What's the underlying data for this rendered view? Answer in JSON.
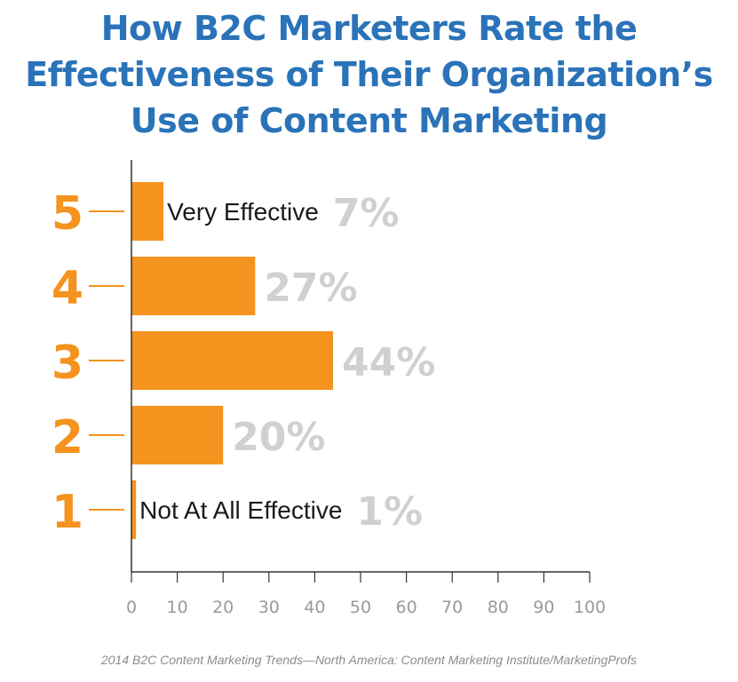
{
  "title": {
    "line1": "How B2C Marketers Rate the",
    "line2": "Effectiveness of Their Organization’s",
    "line3": "Use of Content Marketing"
  },
  "source": "2014 B2C Content Marketing Trends—North America: Content Marketing Institute/MarketingProfs",
  "colors": {
    "title": "#2a73b8",
    "bar": "#f4931e",
    "rating": "#f4931e",
    "value_label": "#d0d0d0",
    "axis": "#333333",
    "tick_label": "#9a9a9a",
    "annotation": "#1a1a1a"
  },
  "chart_data": {
    "type": "bar",
    "orientation": "horizontal",
    "categories": [
      "5",
      "4",
      "3",
      "2",
      "1"
    ],
    "values": [
      7,
      27,
      44,
      20,
      1
    ],
    "value_labels": [
      "7%",
      "27%",
      "44%",
      "20%",
      "1%"
    ],
    "annotations": [
      {
        "category": "5",
        "text": "Very Effective"
      },
      {
        "category": "1",
        "text": "Not At All Effective"
      }
    ],
    "xlim": [
      0,
      100
    ],
    "xticks": [
      0,
      10,
      20,
      30,
      40,
      50,
      60,
      70,
      80,
      90,
      100
    ],
    "grid": false,
    "legend": "none"
  }
}
